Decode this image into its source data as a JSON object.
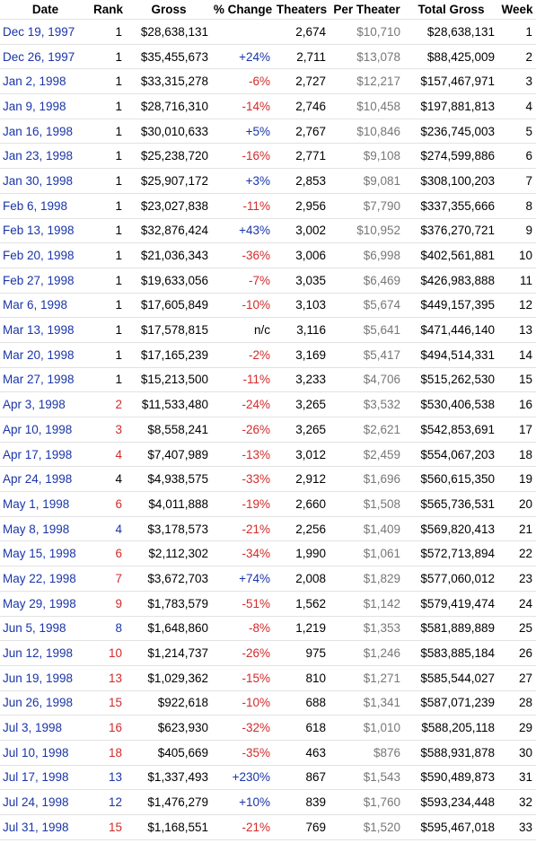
{
  "headers": [
    "Date",
    "Rank",
    "Gross",
    "% Change",
    "Theaters",
    "Per Theater",
    "Total Gross",
    "Week"
  ],
  "rows": [
    {
      "date": "Dec 19, 1997",
      "rank": "1",
      "rank_dir": "",
      "gross": "$28,638,131",
      "change": "",
      "theaters": "2,674",
      "per_theater": "$10,710",
      "total": "$28,638,131",
      "week": "1"
    },
    {
      "date": "Dec 26, 1997",
      "rank": "1",
      "rank_dir": "",
      "gross": "$35,455,673",
      "change": "+24%",
      "theaters": "2,711",
      "per_theater": "$13,078",
      "total": "$88,425,009",
      "week": "2"
    },
    {
      "date": "Jan 2, 1998",
      "rank": "1",
      "rank_dir": "",
      "gross": "$33,315,278",
      "change": "-6%",
      "theaters": "2,727",
      "per_theater": "$12,217",
      "total": "$157,467,971",
      "week": "3"
    },
    {
      "date": "Jan 9, 1998",
      "rank": "1",
      "rank_dir": "",
      "gross": "$28,716,310",
      "change": "-14%",
      "theaters": "2,746",
      "per_theater": "$10,458",
      "total": "$197,881,813",
      "week": "4"
    },
    {
      "date": "Jan 16, 1998",
      "rank": "1",
      "rank_dir": "",
      "gross": "$30,010,633",
      "change": "+5%",
      "theaters": "2,767",
      "per_theater": "$10,846",
      "total": "$236,745,003",
      "week": "5"
    },
    {
      "date": "Jan 23, 1998",
      "rank": "1",
      "rank_dir": "",
      "gross": "$25,238,720",
      "change": "-16%",
      "theaters": "2,771",
      "per_theater": "$9,108",
      "total": "$274,599,886",
      "week": "6"
    },
    {
      "date": "Jan 30, 1998",
      "rank": "1",
      "rank_dir": "",
      "gross": "$25,907,172",
      "change": "+3%",
      "theaters": "2,853",
      "per_theater": "$9,081",
      "total": "$308,100,203",
      "week": "7"
    },
    {
      "date": "Feb 6, 1998",
      "rank": "1",
      "rank_dir": "",
      "gross": "$23,027,838",
      "change": "-11%",
      "theaters": "2,956",
      "per_theater": "$7,790",
      "total": "$337,355,666",
      "week": "8"
    },
    {
      "date": "Feb 13, 1998",
      "rank": "1",
      "rank_dir": "",
      "gross": "$32,876,424",
      "change": "+43%",
      "theaters": "3,002",
      "per_theater": "$10,952",
      "total": "$376,270,721",
      "week": "9"
    },
    {
      "date": "Feb 20, 1998",
      "rank": "1",
      "rank_dir": "",
      "gross": "$21,036,343",
      "change": "-36%",
      "theaters": "3,006",
      "per_theater": "$6,998",
      "total": "$402,561,881",
      "week": "10"
    },
    {
      "date": "Feb 27, 1998",
      "rank": "1",
      "rank_dir": "",
      "gross": "$19,633,056",
      "change": "-7%",
      "theaters": "3,035",
      "per_theater": "$6,469",
      "total": "$426,983,888",
      "week": "11"
    },
    {
      "date": "Mar 6, 1998",
      "rank": "1",
      "rank_dir": "",
      "gross": "$17,605,849",
      "change": "-10%",
      "theaters": "3,103",
      "per_theater": "$5,674",
      "total": "$449,157,395",
      "week": "12"
    },
    {
      "date": "Mar 13, 1998",
      "rank": "1",
      "rank_dir": "",
      "gross": "$17,578,815",
      "change": "n/c",
      "theaters": "3,116",
      "per_theater": "$5,641",
      "total": "$471,446,140",
      "week": "13"
    },
    {
      "date": "Mar 20, 1998",
      "rank": "1",
      "rank_dir": "",
      "gross": "$17,165,239",
      "change": "-2%",
      "theaters": "3,169",
      "per_theater": "$5,417",
      "total": "$494,514,331",
      "week": "14"
    },
    {
      "date": "Mar 27, 1998",
      "rank": "1",
      "rank_dir": "",
      "gross": "$15,213,500",
      "change": "-11%",
      "theaters": "3,233",
      "per_theater": "$4,706",
      "total": "$515,262,530",
      "week": "15"
    },
    {
      "date": "Apr 3, 1998",
      "rank": "2",
      "rank_dir": "down",
      "gross": "$11,533,480",
      "change": "-24%",
      "theaters": "3,265",
      "per_theater": "$3,532",
      "total": "$530,406,538",
      "week": "16"
    },
    {
      "date": "Apr 10, 1998",
      "rank": "3",
      "rank_dir": "down",
      "gross": "$8,558,241",
      "change": "-26%",
      "theaters": "3,265",
      "per_theater": "$2,621",
      "total": "$542,853,691",
      "week": "17"
    },
    {
      "date": "Apr 17, 1998",
      "rank": "4",
      "rank_dir": "down",
      "gross": "$7,407,989",
      "change": "-13%",
      "theaters": "3,012",
      "per_theater": "$2,459",
      "total": "$554,067,203",
      "week": "18"
    },
    {
      "date": "Apr 24, 1998",
      "rank": "4",
      "rank_dir": "",
      "gross": "$4,938,575",
      "change": "-33%",
      "theaters": "2,912",
      "per_theater": "$1,696",
      "total": "$560,615,350",
      "week": "19"
    },
    {
      "date": "May 1, 1998",
      "rank": "6",
      "rank_dir": "down",
      "gross": "$4,011,888",
      "change": "-19%",
      "theaters": "2,660",
      "per_theater": "$1,508",
      "total": "$565,736,531",
      "week": "20"
    },
    {
      "date": "May 8, 1998",
      "rank": "4",
      "rank_dir": "up",
      "gross": "$3,178,573",
      "change": "-21%",
      "theaters": "2,256",
      "per_theater": "$1,409",
      "total": "$569,820,413",
      "week": "21"
    },
    {
      "date": "May 15, 1998",
      "rank": "6",
      "rank_dir": "down",
      "gross": "$2,112,302",
      "change": "-34%",
      "theaters": "1,990",
      "per_theater": "$1,061",
      "total": "$572,713,894",
      "week": "22"
    },
    {
      "date": "May 22, 1998",
      "rank": "7",
      "rank_dir": "down",
      "gross": "$3,672,703",
      "change": "+74%",
      "theaters": "2,008",
      "per_theater": "$1,829",
      "total": "$577,060,012",
      "week": "23"
    },
    {
      "date": "May 29, 1998",
      "rank": "9",
      "rank_dir": "down",
      "gross": "$1,783,579",
      "change": "-51%",
      "theaters": "1,562",
      "per_theater": "$1,142",
      "total": "$579,419,474",
      "week": "24"
    },
    {
      "date": "Jun 5, 1998",
      "rank": "8",
      "rank_dir": "up",
      "gross": "$1,648,860",
      "change": "-8%",
      "theaters": "1,219",
      "per_theater": "$1,353",
      "total": "$581,889,889",
      "week": "25"
    },
    {
      "date": "Jun 12, 1998",
      "rank": "10",
      "rank_dir": "down",
      "gross": "$1,214,737",
      "change": "-26%",
      "theaters": "975",
      "per_theater": "$1,246",
      "total": "$583,885,184",
      "week": "26"
    },
    {
      "date": "Jun 19, 1998",
      "rank": "13",
      "rank_dir": "down",
      "gross": "$1,029,362",
      "change": "-15%",
      "theaters": "810",
      "per_theater": "$1,271",
      "total": "$585,544,027",
      "week": "27"
    },
    {
      "date": "Jun 26, 1998",
      "rank": "15",
      "rank_dir": "down",
      "gross": "$922,618",
      "change": "-10%",
      "theaters": "688",
      "per_theater": "$1,341",
      "total": "$587,071,239",
      "week": "28"
    },
    {
      "date": "Jul 3, 1998",
      "rank": "16",
      "rank_dir": "down",
      "gross": "$623,930",
      "change": "-32%",
      "theaters": "618",
      "per_theater": "$1,010",
      "total": "$588,205,118",
      "week": "29"
    },
    {
      "date": "Jul 10, 1998",
      "rank": "18",
      "rank_dir": "down",
      "gross": "$405,669",
      "change": "-35%",
      "theaters": "463",
      "per_theater": "$876",
      "total": "$588,931,878",
      "week": "30"
    },
    {
      "date": "Jul 17, 1998",
      "rank": "13",
      "rank_dir": "up",
      "gross": "$1,337,493",
      "change": "+230%",
      "theaters": "867",
      "per_theater": "$1,543",
      "total": "$590,489,873",
      "week": "31"
    },
    {
      "date": "Jul 24, 1998",
      "rank": "12",
      "rank_dir": "up",
      "gross": "$1,476,279",
      "change": "+10%",
      "theaters": "839",
      "per_theater": "$1,760",
      "total": "$593,234,448",
      "week": "32"
    },
    {
      "date": "Jul 31, 1998",
      "rank": "15",
      "rank_dir": "down",
      "gross": "$1,168,551",
      "change": "-21%",
      "theaters": "769",
      "per_theater": "$1,520",
      "total": "$595,467,018",
      "week": "33"
    }
  ],
  "colors": {
    "link": "#1a35a8",
    "negative": "#d22a2a",
    "positive": "#1a35a8",
    "per_theater": "#777777"
  }
}
